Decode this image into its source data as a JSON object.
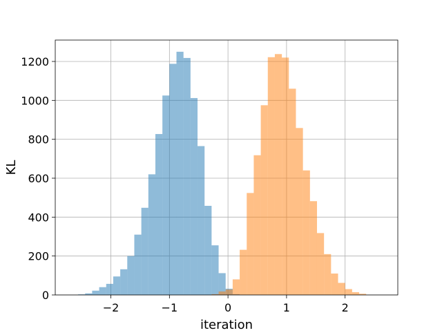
{
  "chart_data": {
    "type": "bar",
    "title": "",
    "xlabel": "iteration",
    "ylabel": "KL",
    "xlim": [
      -2.95,
      2.9
    ],
    "ylim": [
      0,
      1310
    ],
    "grid": true,
    "x_ticks": [
      -2,
      -1,
      0,
      1,
      2
    ],
    "x_tick_labels": [
      "−2",
      "−1",
      "0",
      "1",
      "2"
    ],
    "y_ticks": [
      0,
      200,
      400,
      600,
      800,
      1000,
      1200
    ],
    "y_tick_labels": [
      "0",
      "200",
      "400",
      "600",
      "800",
      "1000",
      "1200"
    ],
    "series": [
      {
        "color": "#1f77b4",
        "opacity": 0.5,
        "bin_edges": [
          -2.56,
          -2.44,
          -2.32,
          -2.2,
          -2.08,
          -1.96,
          -1.84,
          -1.72,
          -1.6,
          -1.48,
          -1.36,
          -1.24,
          -1.12,
          -1.0,
          -0.88,
          -0.76,
          -0.64,
          -0.52,
          -0.4,
          -0.28,
          -0.16,
          -0.04,
          0.08,
          0.2
        ],
        "counts": [
          3,
          8,
          22,
          40,
          57,
          95,
          132,
          200,
          310,
          448,
          620,
          827,
          1025,
          1188,
          1250,
          1218,
          1012,
          765,
          458,
          255,
          112,
          32,
          4
        ]
      },
      {
        "color": "#ff7f0e",
        "opacity": 0.5,
        "bin_edges": [
          -0.28,
          -0.16,
          -0.04,
          0.08,
          0.2,
          0.32,
          0.44,
          0.56,
          0.68,
          0.8,
          0.92,
          1.04,
          1.16,
          1.28,
          1.4,
          1.52,
          1.64,
          1.76,
          1.88,
          2.0,
          2.12,
          2.24,
          2.36
        ],
        "counts": [
          4,
          18,
          28,
          80,
          232,
          524,
          718,
          975,
          1222,
          1238,
          1220,
          1060,
          858,
          640,
          482,
          318,
          210,
          110,
          62,
          30,
          14,
          6
        ]
      }
    ]
  }
}
